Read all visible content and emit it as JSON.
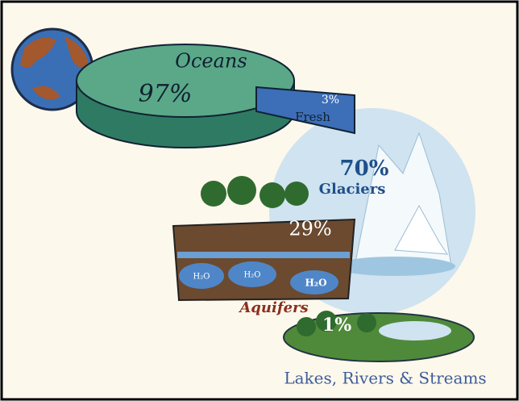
{
  "globe_pie": {
    "oceans": {
      "label": "Oceans",
      "percent": "97%"
    },
    "fresh": {
      "label": "Fresh",
      "percent": "3%"
    }
  },
  "fresh_water": {
    "glaciers": {
      "label": "Glaciers",
      "percent": "70%"
    },
    "aquifers": {
      "label": "Aquifers",
      "percent": "29%",
      "water_labels": [
        "H₂O",
        "H₂O",
        "H₂O"
      ]
    },
    "surface": {
      "label": "Lakes, Rivers & Streams",
      "percent": "1%"
    }
  }
}
